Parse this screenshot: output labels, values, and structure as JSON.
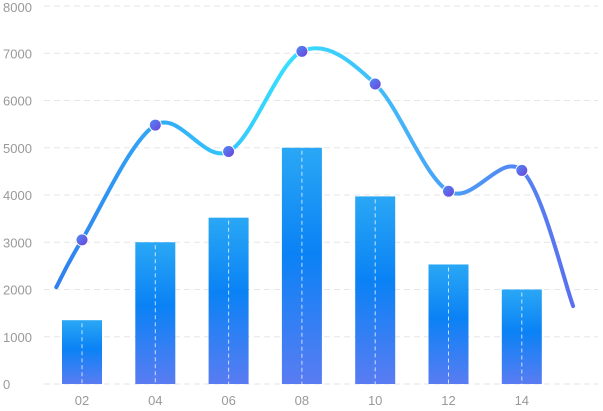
{
  "chart_data": {
    "type": "bar+line",
    "categories": [
      "02",
      "04",
      "06",
      "08",
      "10",
      "12",
      "14"
    ],
    "series": [
      {
        "type": "bar",
        "values": [
          1350,
          3000,
          3520,
          5000,
          3970,
          2530,
          2000
        ],
        "gradient": [
          "#2aa7f5",
          "#0a82f5",
          "#5a7cf2"
        ]
      },
      {
        "type": "line",
        "smooth": true,
        "values": [
          3050,
          5480,
          4920,
          7040,
          6350,
          4080,
          4520
        ],
        "start_value": 2050,
        "end_value": 1650,
        "gradient": [
          "#2f7ff0",
          "#36e0ff",
          "#5a6ff0"
        ],
        "marker_gradient": [
          "#4e8df5",
          "#6f3fd8"
        ]
      }
    ],
    "ylim": [
      0,
      8000
    ],
    "yticks": [
      "0",
      "1000",
      "2000",
      "3000",
      "4000",
      "5000",
      "6000",
      "7000",
      "8000"
    ],
    "grid": true,
    "grid_color": "#e6e6e6",
    "axis_label_color": "#999999"
  }
}
